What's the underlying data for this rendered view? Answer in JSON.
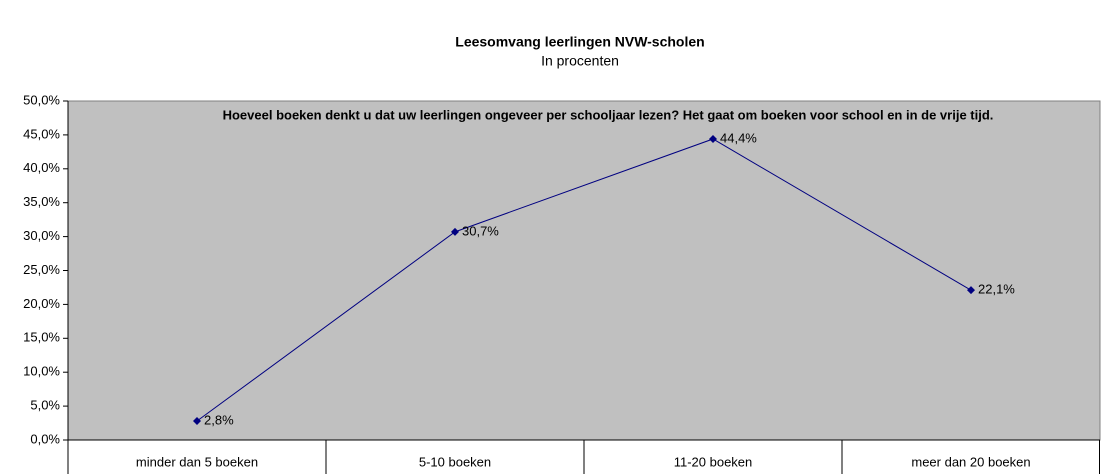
{
  "chart_data": {
    "type": "line",
    "title": "Leesomvang leerlingen NVW-scholen",
    "subtitle": "In procenten",
    "annotation": "Hoeveel boeken denkt u dat uw leerlingen ongeveer per schooljaar lezen? Het gaat om boeken voor school en in de vrije tijd.",
    "categories": [
      "minder dan 5 boeken",
      "5-10 boeken",
      "11-20 boeken",
      "meer dan 20 boeken"
    ],
    "values": [
      2.8,
      30.7,
      44.4,
      22.1
    ],
    "value_labels": [
      "2,8%",
      "30,7%",
      "44,4%",
      "22,1%"
    ],
    "color": "#000080",
    "plot_background": "#c0c0c0",
    "ylim": [
      0,
      50
    ],
    "yticks": [
      {
        "value": 0,
        "label": "0,0%"
      },
      {
        "value": 5,
        "label": "5,0%"
      },
      {
        "value": 10,
        "label": "10,0%"
      },
      {
        "value": 15,
        "label": "15,0%"
      },
      {
        "value": 20,
        "label": "20,0%"
      },
      {
        "value": 25,
        "label": "25,0%"
      },
      {
        "value": 30,
        "label": "30,0%"
      },
      {
        "value": 35,
        "label": "35,0%"
      },
      {
        "value": 40,
        "label": "40,0%"
      },
      {
        "value": 45,
        "label": "45,0%"
      },
      {
        "value": 50,
        "label": "50,0%"
      }
    ],
    "grid": false
  }
}
